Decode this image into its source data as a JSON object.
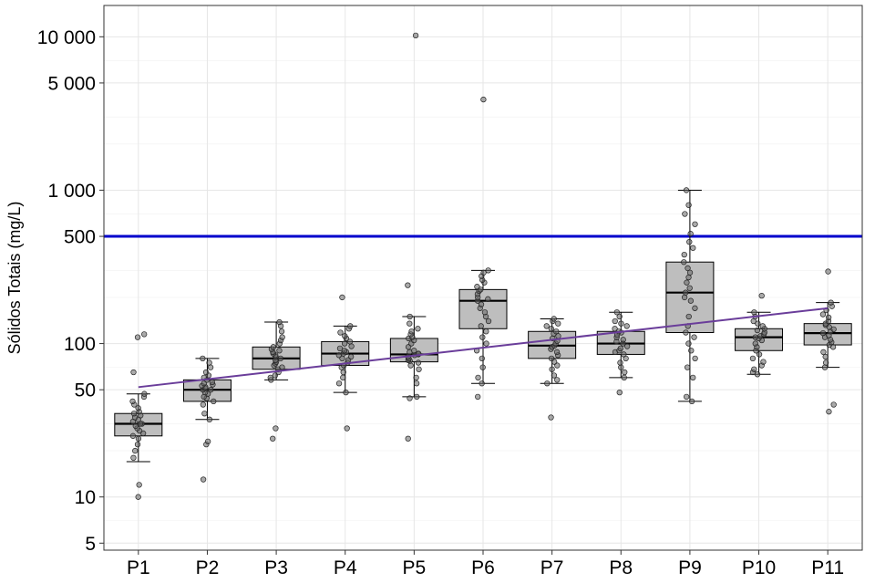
{
  "chart_data": {
    "type": "box",
    "ylabel": "Sólidos Totais (mg/L)",
    "yscale": "log10",
    "ylim": [
      4.5,
      16000
    ],
    "yticks": [
      5,
      10,
      50,
      100,
      500,
      1000,
      5000,
      10000
    ],
    "ytick_labels": [
      "5",
      "10",
      "50",
      "100",
      "500",
      "1 000",
      "5 000",
      "10 000"
    ],
    "categories": [
      "P1",
      "P2",
      "P3",
      "P4",
      "P5",
      "P6",
      "P7",
      "P8",
      "P9",
      "P10",
      "P11"
    ],
    "reference_line": {
      "value": 500,
      "color": "#0000cc"
    },
    "trend_line": {
      "color": "#6a3d9a",
      "start": 52,
      "end": 170
    },
    "box_fill": "#bebebe",
    "grid": true,
    "boxes": [
      {
        "q1": 25,
        "median": 30,
        "q3": 35,
        "whisker_low": 17,
        "whisker_high": 47,
        "points": [
          10,
          12,
          18,
          20,
          22,
          24,
          25,
          26,
          27,
          28,
          29,
          30,
          30,
          31,
          32,
          33,
          34,
          35,
          36,
          38,
          40,
          42,
          45,
          47,
          65,
          110,
          115
        ]
      },
      {
        "q1": 42,
        "median": 50,
        "q3": 58,
        "whisker_low": 32,
        "whisker_high": 80,
        "points": [
          13,
          22,
          23,
          32,
          35,
          40,
          42,
          44,
          45,
          47,
          48,
          50,
          50,
          51,
          52,
          53,
          54,
          55,
          56,
          58,
          60,
          62,
          65,
          70,
          75,
          80
        ]
      },
      {
        "q1": 68,
        "median": 80,
        "q3": 95,
        "whisker_low": 58,
        "whisker_high": 138,
        "points": [
          24,
          28,
          58,
          60,
          62,
          65,
          68,
          70,
          72,
          74,
          76,
          78,
          80,
          82,
          84,
          86,
          88,
          90,
          92,
          95,
          100,
          105,
          110,
          120,
          130,
          138
        ]
      },
      {
        "q1": 72,
        "median": 86,
        "q3": 103,
        "whisker_low": 48,
        "whisker_high": 130,
        "points": [
          28,
          48,
          55,
          60,
          65,
          70,
          72,
          75,
          78,
          80,
          82,
          84,
          86,
          88,
          90,
          93,
          96,
          100,
          103,
          108,
          112,
          118,
          125,
          130,
          200
        ]
      },
      {
        "q1": 76,
        "median": 85,
        "q3": 108,
        "whisker_low": 45,
        "whisker_high": 150,
        "points": [
          24,
          44,
          45,
          55,
          60,
          68,
          72,
          75,
          77,
          78,
          80,
          82,
          84,
          85,
          86,
          88,
          90,
          95,
          100,
          105,
          108,
          110,
          115,
          120,
          125,
          135,
          150,
          240,
          10200
        ]
      },
      {
        "q1": 125,
        "median": 190,
        "q3": 225,
        "whisker_low": 55,
        "whisker_high": 300,
        "points": [
          45,
          55,
          60,
          70,
          80,
          90,
          100,
          110,
          120,
          130,
          140,
          150,
          160,
          170,
          180,
          190,
          195,
          200,
          210,
          220,
          225,
          235,
          250,
          260,
          275,
          290,
          300,
          3900
        ]
      },
      {
        "q1": 80,
        "median": 97,
        "q3": 120,
        "whisker_low": 55,
        "whisker_high": 145,
        "points": [
          33,
          55,
          58,
          62,
          68,
          72,
          76,
          80,
          84,
          88,
          92,
          95,
          97,
          100,
          104,
          108,
          112,
          116,
          120,
          125,
          130,
          135,
          140,
          145
        ]
      },
      {
        "q1": 85,
        "median": 100,
        "q3": 120,
        "whisker_low": 60,
        "whisker_high": 160,
        "points": [
          48,
          60,
          65,
          70,
          75,
          80,
          85,
          88,
          90,
          93,
          96,
          100,
          103,
          106,
          110,
          114,
          118,
          120,
          125,
          130,
          135,
          140,
          150,
          160
        ]
      },
      {
        "q1": 118,
        "median": 215,
        "q3": 340,
        "whisker_low": 42,
        "whisker_high": 1000,
        "points": [
          42,
          45,
          60,
          70,
          80,
          90,
          100,
          110,
          118,
          130,
          150,
          170,
          190,
          200,
          215,
          230,
          250,
          270,
          290,
          310,
          340,
          380,
          420,
          460,
          520,
          600,
          700,
          800,
          1000
        ]
      },
      {
        "q1": 90,
        "median": 110,
        "q3": 125,
        "whisker_low": 63,
        "whisker_high": 160,
        "points": [
          63,
          65,
          68,
          72,
          76,
          80,
          85,
          90,
          95,
          100,
          105,
          108,
          110,
          112,
          115,
          118,
          122,
          125,
          130,
          135,
          140,
          150,
          160,
          205
        ]
      },
      {
        "q1": 98,
        "median": 117,
        "q3": 135,
        "whisker_low": 70,
        "whisker_high": 185,
        "points": [
          36,
          40,
          70,
          75,
          82,
          88,
          95,
          98,
          102,
          106,
          110,
          113,
          117,
          120,
          124,
          128,
          132,
          135,
          140,
          148,
          155,
          165,
          175,
          185,
          295
        ]
      }
    ]
  }
}
